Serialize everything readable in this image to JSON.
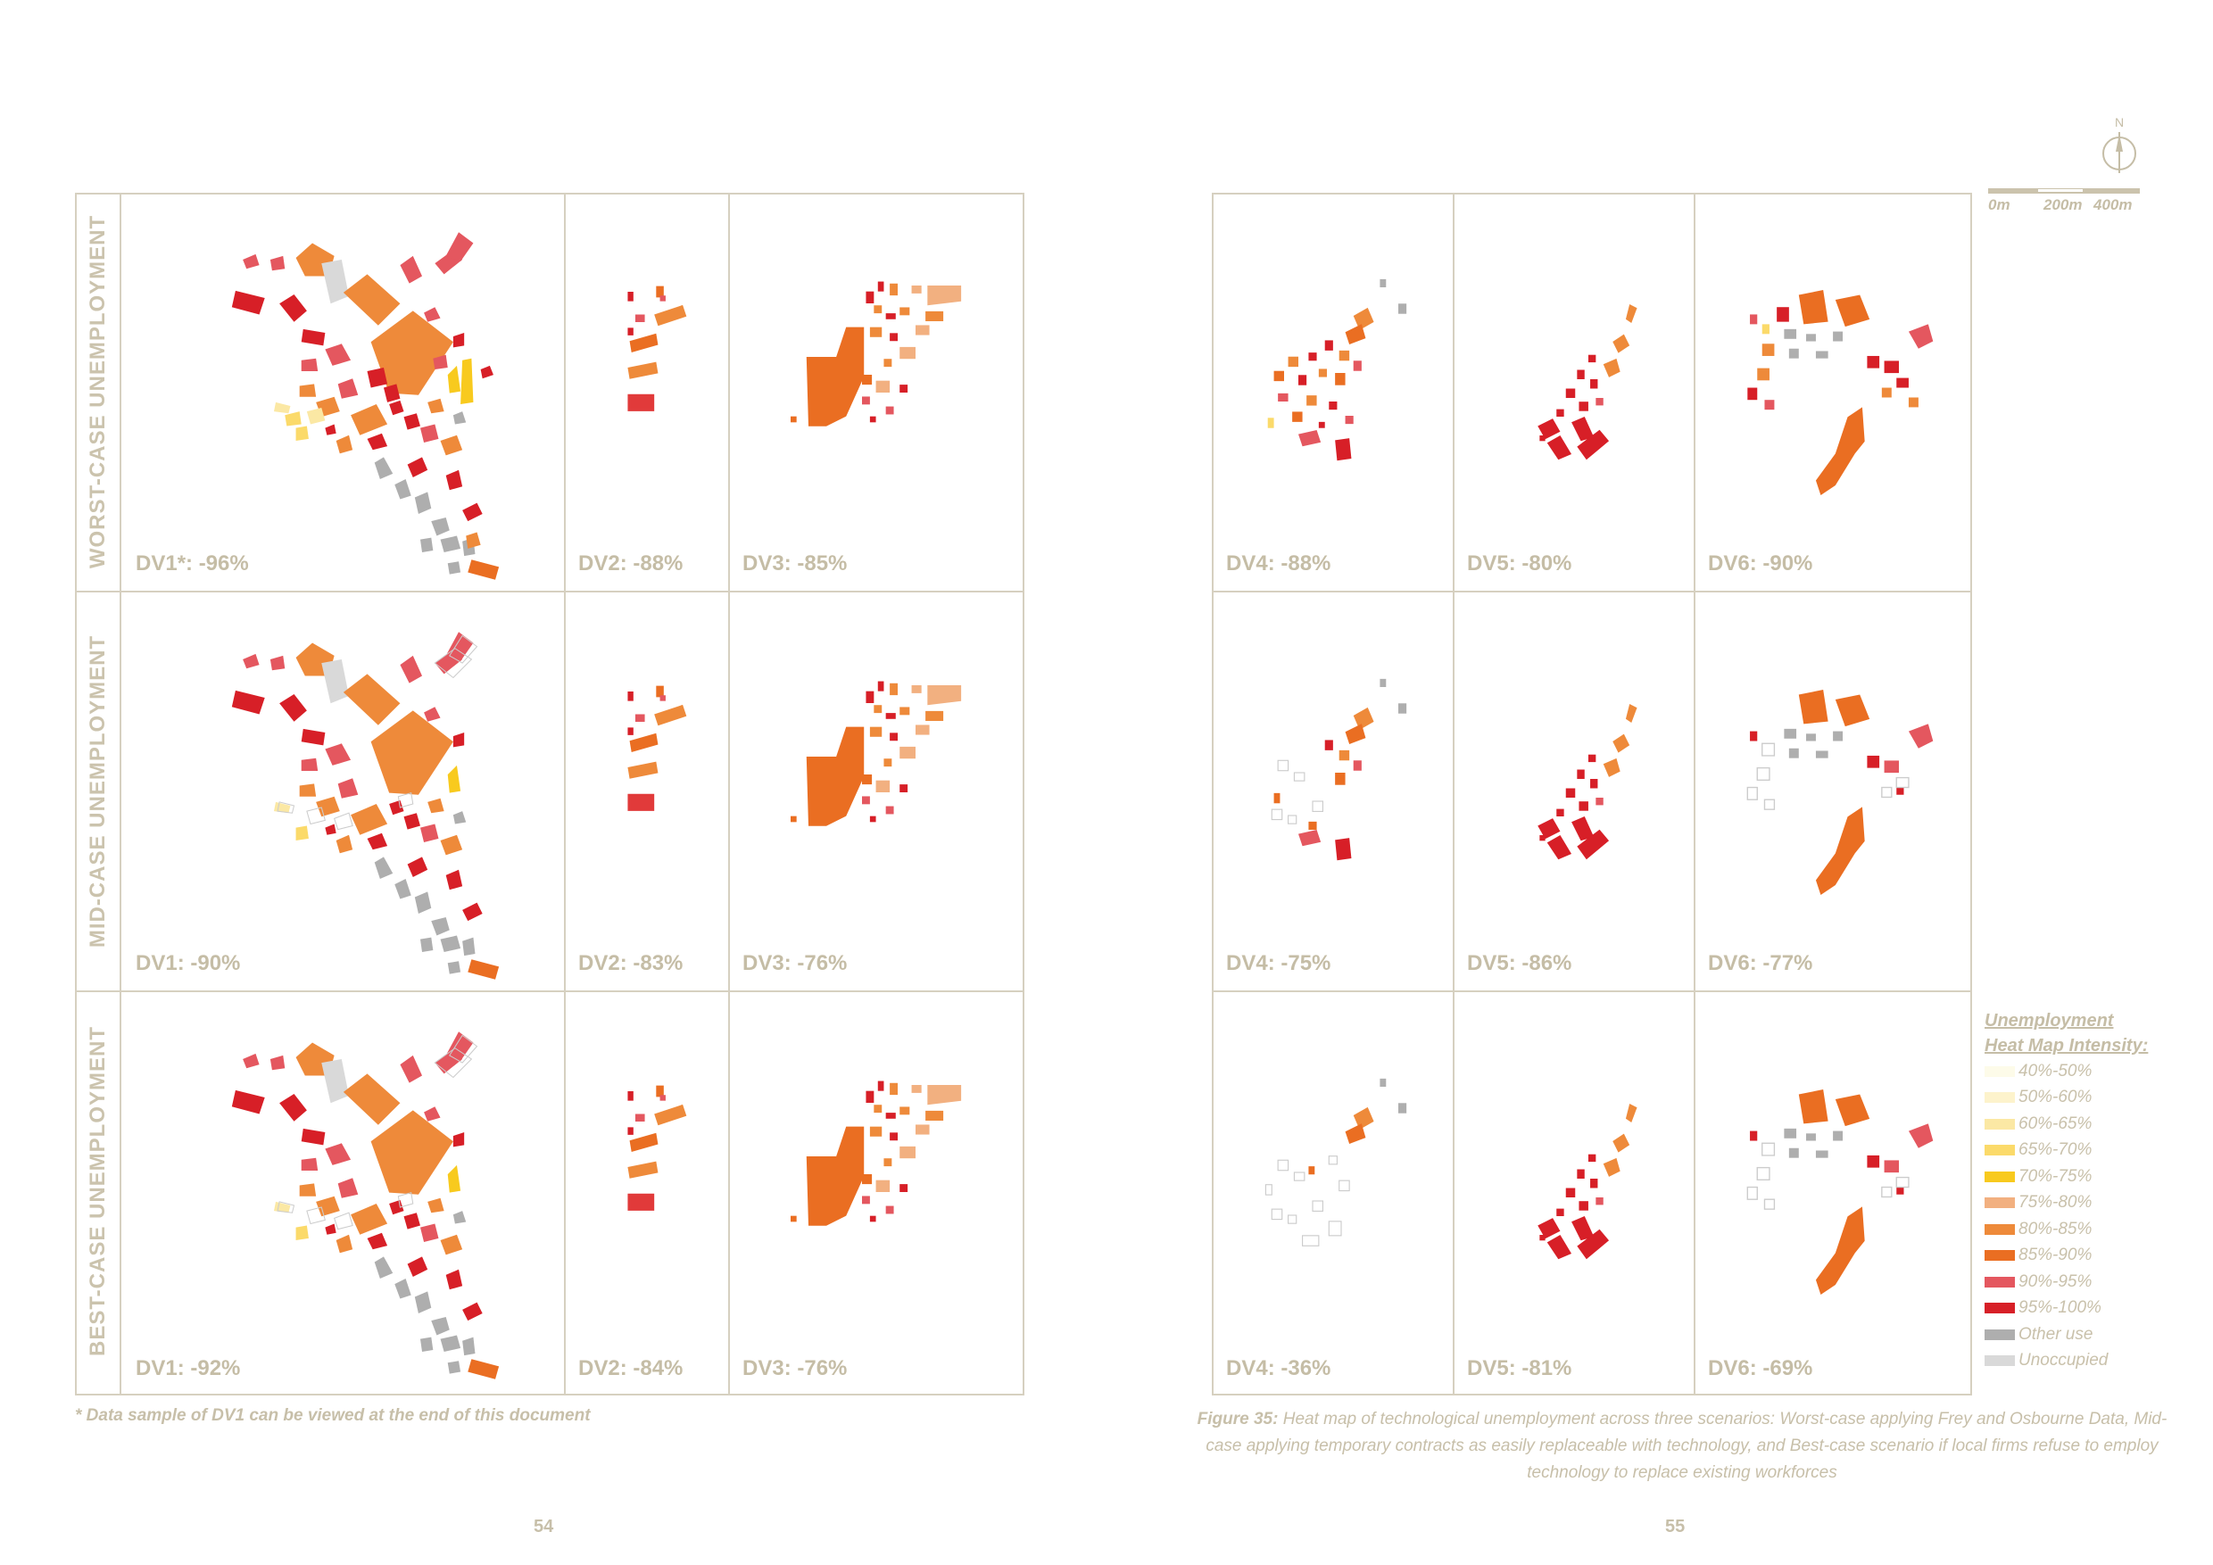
{
  "rows": [
    {
      "label": "WORST-CASE UNEMPLOYMENT"
    },
    {
      "label": "MID-CASE UNEMPLOYMENT"
    },
    {
      "label": "BEST-CASE UNEMPLOYMENT"
    }
  ],
  "panels": [
    [
      "DV1*: -96%",
      "DV2: -88%",
      "DV3: -85%",
      "DV4: -88%",
      "DV5: -80%",
      "DV6: -90%"
    ],
    [
      "DV1: -90%",
      "DV2: -83%",
      "DV3: -76%",
      "DV4: -75%",
      "DV5: -86%",
      "DV6: -77%"
    ],
    [
      "DV1: -92%",
      "DV2: -84%",
      "DV3: -76%",
      "DV4: -36%",
      "DV5: -81%",
      "DV6: -69%"
    ]
  ],
  "compass": {
    "label": "N"
  },
  "scale": {
    "labels": [
      "0m",
      "200m",
      "400m"
    ]
  },
  "legend": {
    "title_line1": "Unemployment",
    "title_line2": "Heat Map Intensity:",
    "items": [
      {
        "label": "40%-50%",
        "color": "#fdfbe9"
      },
      {
        "label": "50%-60%",
        "color": "#fdf3cc"
      },
      {
        "label": "60%-65%",
        "color": "#fbe8a4"
      },
      {
        "label": "65%-70%",
        "color": "#fbda6a"
      },
      {
        "label": "70%-75%",
        "color": "#f8ca1e"
      },
      {
        "label": "75%-80%",
        "color": "#f2b080"
      },
      {
        "label": "80%-85%",
        "color": "#ee8a3a"
      },
      {
        "label": "85%-90%",
        "color": "#ea6e22"
      },
      {
        "label": "90%-95%",
        "color": "#e4575f"
      },
      {
        "label": "95%-100%",
        "color": "#d71f27"
      },
      {
        "label": "Other use",
        "color": "#aeaeae"
      },
      {
        "label": "Unoccupied",
        "color": "#d9d9d9"
      }
    ]
  },
  "footnote": "* Data sample of DV1 can be viewed at the end of this document",
  "caption": {
    "figure": "Figure 35:",
    "text": " Heat map of technological unemployment across three scenarios: Worst-case applying Frey and Osbourne Data, Mid-case applying temporary contracts as easily replaceable with technology, and Best-case scenario if local firms refuse to employ technology to replace existing workforces"
  },
  "page_numbers": {
    "left": "54",
    "right": "55"
  }
}
